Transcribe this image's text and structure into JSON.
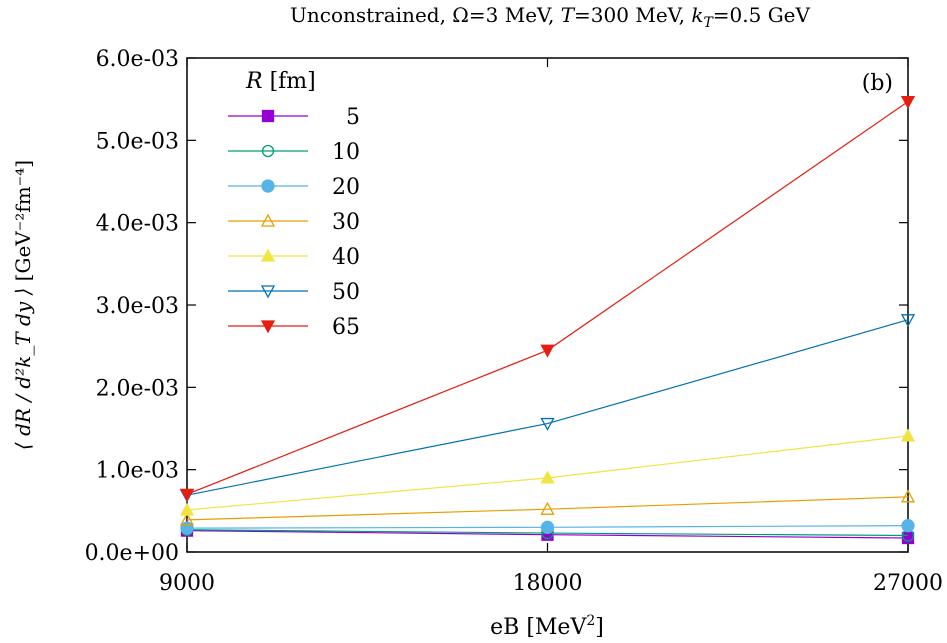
{
  "chart_data": {
    "type": "line",
    "title": "Unconstrained, Ω=3 MeV, T=300 MeV, k_T=0.5 GeV",
    "title_parts": {
      "pre": "Unconstrained, Ω=3 MeV, ",
      "T": "T",
      "t_val": "=300 MeV, ",
      "k": "k",
      "k_sub": "T",
      "k_val": "=0.5 GeV"
    },
    "panel_label": "(b)",
    "xlabel": "eB [MeV²]",
    "xlabel_parts": {
      "main": "eB [MeV",
      "sup": "2",
      "end": "]"
    },
    "ylabel": "⟨dR/(d²k_T dy)⟩ [GeV⁻²fm⁻⁴]",
    "ylabel_parts": {
      "frac": "⟨ dR / d²k_T dy ⟩",
      "unit": "[GeV⁻²fm⁻⁴]"
    },
    "xlim": [
      9000,
      27000
    ],
    "ylim": [
      0,
      0.006
    ],
    "x_ticks": [
      9000,
      18000,
      27000
    ],
    "x_tick_labels": [
      "9000",
      "18000",
      "27000"
    ],
    "y_ticks": [
      0,
      0.001,
      0.002,
      0.003,
      0.004,
      0.005,
      0.006
    ],
    "y_tick_labels": [
      "0.0e+00",
      "1.0e-03",
      "2.0e-03",
      "3.0e-03",
      "4.0e-03",
      "5.0e-03",
      "6.0e-03"
    ],
    "grid": false,
    "legend": {
      "title": "R [fm]",
      "title_var": "R",
      "title_unit": " [fm]",
      "placement": "top-left"
    },
    "x": [
      9000,
      18000,
      27000
    ],
    "series": [
      {
        "name": "5",
        "color": "#9400d3",
        "marker": "square-filled",
        "values": [
          0.00026,
          0.00021,
          0.00017
        ]
      },
      {
        "name": "10",
        "color": "#009e73",
        "marker": "circle-open",
        "values": [
          0.00027,
          0.00023,
          0.0002
        ]
      },
      {
        "name": "20",
        "color": "#56b4e9",
        "marker": "circle-filled",
        "values": [
          0.00029,
          0.0003,
          0.00032
        ]
      },
      {
        "name": "30",
        "color": "#e69f00",
        "marker": "triangle-up-open",
        "values": [
          0.00039,
          0.00052,
          0.00067
        ]
      },
      {
        "name": "40",
        "color": "#f0e442",
        "marker": "triangle-up-filled",
        "values": [
          0.00051,
          0.0009,
          0.00141
        ]
      },
      {
        "name": "50",
        "color": "#0072b2",
        "marker": "triangle-down-open",
        "values": [
          0.00069,
          0.00156,
          0.00282
        ]
      },
      {
        "name": "65",
        "color": "#e51e10",
        "marker": "triangle-down-filled",
        "values": [
          0.0007,
          0.00245,
          0.00547
        ]
      }
    ]
  }
}
